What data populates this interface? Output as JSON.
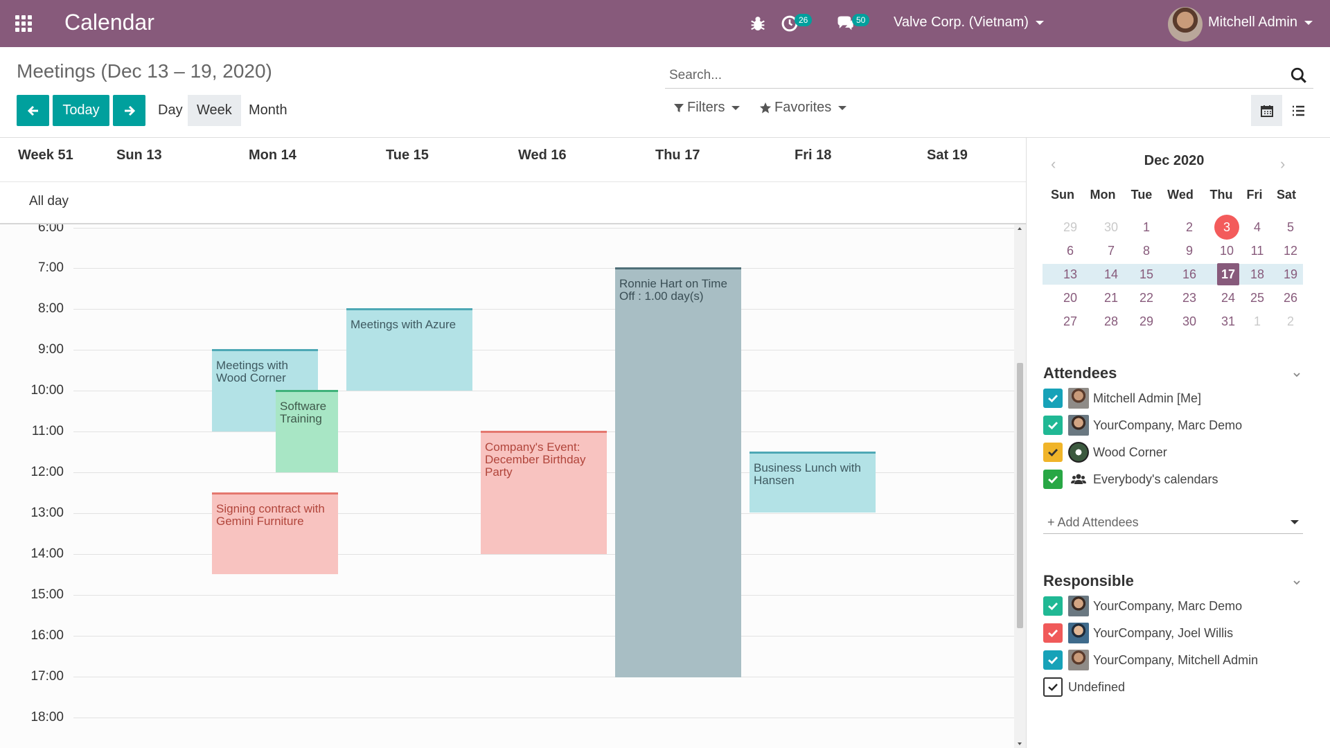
{
  "navbar": {
    "app_title": "Calendar",
    "activity_count": "26",
    "messages_count": "50",
    "company": "Valve Corp. (Vietnam)",
    "user": "Mitchell Admin",
    "icons": [
      "apps-grid-icon",
      "bug-icon",
      "clock-icon",
      "chat-icon"
    ]
  },
  "control": {
    "title": "Meetings (Dec 13 – 19, 2020)",
    "search_placeholder": "Search...",
    "today_label": "Today",
    "scales": [
      "Day",
      "Week",
      "Month"
    ],
    "active_scale": "Week",
    "filters_label": "Filters",
    "favorites_label": "Favorites"
  },
  "calendar": {
    "week_label": "Week 51",
    "days": [
      "Sun 13",
      "Mon 14",
      "Tue 15",
      "Wed 16",
      "Thu 17",
      "Fri 18",
      "Sat 19"
    ],
    "all_day_label": "All day",
    "hours": [
      "6:00",
      "7:00",
      "8:00",
      "9:00",
      "10:00",
      "11:00",
      "12:00",
      "13:00",
      "14:00",
      "15:00",
      "16:00",
      "17:00",
      "18:00"
    ],
    "events": [
      {
        "title": "Meetings with Wood Corner",
        "day": "Mon 14",
        "start": "9:00",
        "end": "11:00",
        "color": "#b3e2e6"
      },
      {
        "title": "Software Training",
        "day": "Mon 14",
        "start": "10:00",
        "end": "12:00",
        "color": "#a8e6c5"
      },
      {
        "title": "Signing contract with Gemini Furniture",
        "day": "Mon 14",
        "start": "12:30",
        "end": "14:30",
        "color": "#f8c3c0"
      },
      {
        "title": "Meetings with Azure",
        "day": "Tue 15",
        "start": "8:00",
        "end": "10:00",
        "color": "#b3e2e6"
      },
      {
        "title": "Company's Event: December Birthday Party",
        "day": "Wed 16",
        "start": "11:00",
        "end": "14:00",
        "color": "#f8c3c0"
      },
      {
        "title": "Ronnie Hart on Time Off : 1.00 day(s)",
        "day": "Thu 17",
        "start": "7:00",
        "end": "17:00",
        "color": "#a8bec4"
      },
      {
        "title": "Business Lunch with Hansen",
        "day": "Fri 18",
        "start": "11:30",
        "end": "13:00",
        "color": "#b3e2e6"
      }
    ]
  },
  "sidebar": {
    "mini_calendar": {
      "title": "Dec 2020",
      "dow": [
        "Sun",
        "Mon",
        "Tue",
        "Wed",
        "Thu",
        "Fri",
        "Sat"
      ],
      "weeks": [
        [
          "29",
          "30",
          "1",
          "2",
          "3",
          "4",
          "5"
        ],
        [
          "6",
          "7",
          "8",
          "9",
          "10",
          "11",
          "12"
        ],
        [
          "13",
          "14",
          "15",
          "16",
          "17",
          "18",
          "19"
        ],
        [
          "20",
          "21",
          "22",
          "23",
          "24",
          "25",
          "26"
        ],
        [
          "27",
          "28",
          "29",
          "30",
          "31",
          "1",
          "2"
        ]
      ],
      "today": "3",
      "selected": "17"
    },
    "attendees": {
      "title": "Attendees",
      "items": [
        {
          "label": "Mitchell Admin [Me]",
          "color": "#17a2b8"
        },
        {
          "label": "YourCompany, Marc Demo",
          "color": "#20b894"
        },
        {
          "label": "Wood Corner",
          "color": "#f0b429"
        },
        {
          "label": "Everybody's calendars",
          "color": "#28a745"
        }
      ],
      "add_placeholder": "+ Add Attendees"
    },
    "responsible": {
      "title": "Responsible",
      "items": [
        {
          "label": "YourCompany, Marc Demo",
          "color": "#20b894"
        },
        {
          "label": "YourCompany, Joel Willis",
          "color": "#f05a5a"
        },
        {
          "label": "YourCompany, Mitchell Admin",
          "color": "#17a2b8"
        },
        {
          "label": "Undefined",
          "color": "#ffffff"
        }
      ]
    }
  }
}
